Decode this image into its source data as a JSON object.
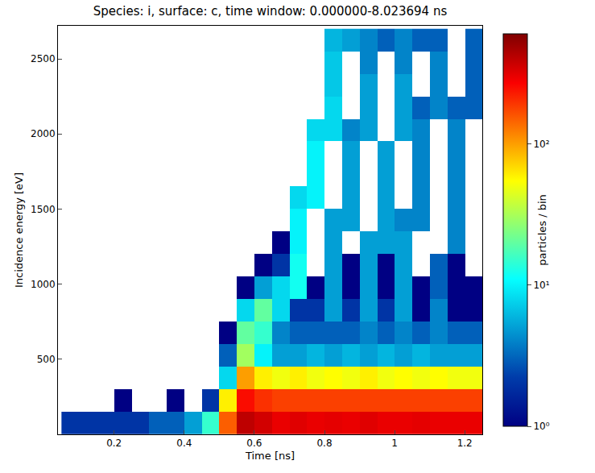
{
  "chart_data": {
    "type": "heatmap",
    "title": "Species: i, surface: c, time window: 0.000000-8.023694 ns",
    "x_label": "Time [ns]",
    "y_label": "Incidence energy [eV]",
    "xlim": [
      0.04,
      1.25
    ],
    "ylim": [
      0,
      2720
    ],
    "xticks": [
      0.2,
      0.4,
      0.6,
      0.8,
      1.0,
      1.2
    ],
    "yticks": [
      500,
      1000,
      1500,
      2000,
      2500
    ],
    "grid": false,
    "x_bins": [
      0.05,
      0.1,
      0.15,
      0.2,
      0.25,
      0.3,
      0.35,
      0.4,
      0.45,
      0.5,
      0.55,
      0.6,
      0.65,
      0.7,
      0.75,
      0.8,
      0.85,
      0.9,
      0.95,
      1.0,
      1.05,
      1.1,
      1.15,
      1.2,
      1.25
    ],
    "y_bins": [
      0,
      150,
      300,
      450,
      600,
      750,
      900,
      1050,
      1200,
      1350,
      1500,
      1650,
      1800,
      1950,
      2100,
      2250,
      2400,
      2550,
      2700
    ],
    "cells": [
      [
        2,
        2,
        2,
        2,
        2,
        3,
        3,
        5,
        15,
        150,
        400,
        350,
        300,
        320,
        300,
        310,
        300,
        320,
        300,
        300,
        310,
        300,
        300,
        300
      ],
      [
        null,
        null,
        null,
        1,
        null,
        null,
        1,
        null,
        2,
        60,
        250,
        200,
        180,
        180,
        180,
        180,
        180,
        180,
        180,
        180,
        180,
        180,
        180,
        180
      ],
      [
        null,
        null,
        null,
        null,
        null,
        null,
        null,
        null,
        null,
        8,
        100,
        60,
        50,
        60,
        50,
        55,
        50,
        60,
        50,
        55,
        50,
        55,
        50,
        50
      ],
      [
        null,
        null,
        null,
        null,
        null,
        null,
        null,
        null,
        null,
        3,
        30,
        10,
        5,
        5,
        6,
        5,
        6,
        5,
        6,
        5,
        6,
        5,
        5,
        5
      ],
      [
        null,
        null,
        null,
        null,
        null,
        null,
        null,
        null,
        null,
        1,
        20,
        15,
        4,
        3,
        3,
        3,
        3,
        4,
        3,
        4,
        3,
        4,
        3,
        3
      ],
      [
        null,
        null,
        null,
        null,
        null,
        null,
        null,
        null,
        null,
        null,
        8,
        20,
        8,
        2,
        2,
        5,
        2,
        5,
        2,
        5,
        1,
        4,
        1,
        1
      ],
      [
        null,
        null,
        null,
        null,
        null,
        null,
        null,
        null,
        null,
        null,
        1,
        5,
        8,
        12,
        1,
        5,
        1,
        5,
        1,
        5,
        1,
        3,
        1,
        1
      ],
      [
        null,
        null,
        null,
        null,
        null,
        null,
        null,
        null,
        null,
        null,
        null,
        1,
        2,
        12,
        null,
        5,
        1,
        5,
        1,
        5,
        null,
        3,
        1,
        null
      ],
      [
        null,
        null,
        null,
        null,
        null,
        null,
        null,
        null,
        null,
        null,
        null,
        null,
        1,
        10,
        null,
        5,
        null,
        5,
        5,
        5,
        null,
        null,
        4,
        null
      ],
      [
        null,
        null,
        null,
        null,
        null,
        null,
        null,
        null,
        null,
        null,
        null,
        null,
        null,
        10,
        null,
        5,
        5,
        null,
        5,
        4,
        4,
        null,
        4,
        null
      ],
      [
        null,
        null,
        null,
        null,
        null,
        null,
        null,
        null,
        null,
        null,
        null,
        null,
        null,
        8,
        10,
        null,
        5,
        null,
        5,
        null,
        4,
        null,
        4,
        null
      ],
      [
        null,
        null,
        null,
        null,
        null,
        null,
        null,
        null,
        null,
        null,
        null,
        null,
        null,
        null,
        10,
        null,
        5,
        null,
        5,
        null,
        4,
        null,
        4,
        null
      ],
      [
        null,
        null,
        null,
        null,
        null,
        null,
        null,
        null,
        null,
        null,
        null,
        null,
        null,
        null,
        10,
        null,
        5,
        null,
        5,
        null,
        4,
        null,
        4,
        null
      ],
      [
        null,
        null,
        null,
        null,
        null,
        null,
        null,
        null,
        null,
        null,
        null,
        null,
        null,
        null,
        8,
        8,
        4,
        5,
        null,
        5,
        4,
        null,
        4,
        null
      ],
      [
        null,
        null,
        null,
        null,
        null,
        null,
        null,
        null,
        null,
        null,
        null,
        null,
        null,
        null,
        null,
        8,
        null,
        5,
        null,
        5,
        3,
        4,
        3,
        3
      ],
      [
        null,
        null,
        null,
        null,
        null,
        null,
        null,
        null,
        null,
        null,
        null,
        null,
        null,
        null,
        null,
        7,
        null,
        5,
        null,
        5,
        null,
        4,
        null,
        3
      ],
      [
        null,
        null,
        null,
        null,
        null,
        null,
        null,
        null,
        null,
        null,
        null,
        null,
        null,
        null,
        null,
        7,
        null,
        4,
        null,
        4,
        null,
        4,
        null,
        3
      ],
      [
        null,
        null,
        null,
        null,
        null,
        null,
        null,
        null,
        null,
        null,
        null,
        null,
        null,
        null,
        null,
        6,
        5,
        4,
        3,
        4,
        3,
        3,
        null,
        3
      ]
    ],
    "colorbar": {
      "title": "particles / bin",
      "range": [
        1,
        600
      ],
      "log": true,
      "ticks": [
        {
          "value": 1,
          "label": "10⁰"
        },
        {
          "value": 10,
          "label": "10¹"
        },
        {
          "value": 100,
          "label": "10²"
        }
      ]
    }
  }
}
